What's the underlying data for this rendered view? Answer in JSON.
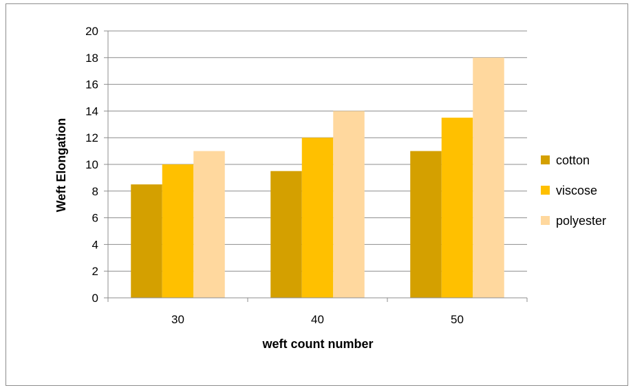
{
  "chart_data": {
    "type": "bar",
    "categories": [
      "30",
      "40",
      "50"
    ],
    "series": [
      {
        "name": "cotton",
        "values": [
          8.5,
          9.5,
          11
        ],
        "color": "#D4A000"
      },
      {
        "name": "viscose",
        "values": [
          10,
          12,
          13.5
        ],
        "color": "#FFC000"
      },
      {
        "name": "polyester",
        "values": [
          11,
          14,
          18
        ],
        "color": "#FFD89E"
      }
    ],
    "title": "",
    "xlabel": "weft count number",
    "ylabel": "Weft Elongation",
    "ylim": [
      0,
      20
    ],
    "yticks": [
      "0",
      "2",
      "4",
      "6",
      "8",
      "10",
      "12",
      "14",
      "16",
      "18",
      "20"
    ],
    "grid": true,
    "legend_position": "right"
  }
}
